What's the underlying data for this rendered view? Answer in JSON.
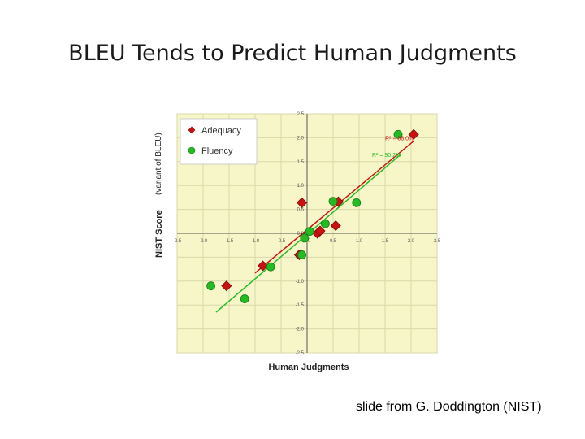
{
  "slide_title": "BLEU Tends to Predict Human Judgments",
  "credit": "slide from G. Doddington (NIST)",
  "chart_data": {
    "type": "scatter",
    "xlabel": "Human Judgments",
    "ylabel": "NIST Score",
    "ylabel_note": "(variant of BLEU)",
    "xlim": [
      -2.5,
      2.5
    ],
    "ylim": [
      -2.5,
      2.5
    ],
    "x_ticks": [
      "-2.5",
      "-2.0",
      "-1.5",
      "-1.0",
      "-0.5",
      "0.0",
      "0.5",
      "1.0",
      "1.5",
      "2.0",
      "2.5"
    ],
    "y_ticks": [
      "2.5",
      "2.0",
      "1.5",
      "1.0",
      "0.5",
      "0.0",
      "-0.5",
      "-1.0",
      "-1.5",
      "-2.0",
      "-2.5"
    ],
    "x_tick_values": [
      -2.5,
      -2.0,
      -1.5,
      -1.0,
      -0.5,
      0.0,
      0.5,
      1.0,
      1.5,
      2.0,
      2.5
    ],
    "y_tick_values": [
      2.5,
      2.0,
      1.5,
      1.0,
      0.5,
      0.0,
      -0.5,
      -1.0,
      -1.5,
      -2.0,
      -2.5
    ],
    "legend_position": "top-left",
    "grid": true,
    "background_color": "#f7f6c8",
    "series": [
      {
        "name": "Adequacy",
        "marker": "diamond",
        "color": "#cc1111",
        "r2_label": "R² = 88.0%",
        "points": [
          {
            "x": 2.05,
            "y": 2.07
          },
          {
            "x": 0.6,
            "y": 0.66
          },
          {
            "x": 0.55,
            "y": 0.16
          },
          {
            "x": -0.1,
            "y": 0.64
          },
          {
            "x": 0.2,
            "y": 0.0
          },
          {
            "x": 0.25,
            "y": 0.05
          },
          {
            "x": -0.15,
            "y": -0.45
          },
          {
            "x": -0.85,
            "y": -0.68
          },
          {
            "x": -1.55,
            "y": -1.1
          }
        ],
        "trend": {
          "x": [
            -1.0,
            2.05
          ],
          "y": [
            -0.83,
            1.93
          ]
        }
      },
      {
        "name": "Fluency",
        "marker": "circle",
        "color": "#22bb22",
        "r2_label": "R² = 90.2%",
        "points": [
          {
            "x": 1.75,
            "y": 2.07
          },
          {
            "x": 0.95,
            "y": 0.64
          },
          {
            "x": 0.5,
            "y": 0.67
          },
          {
            "x": 0.35,
            "y": 0.2
          },
          {
            "x": 0.05,
            "y": 0.04
          },
          {
            "x": -0.05,
            "y": -0.1
          },
          {
            "x": -0.1,
            "y": -0.45
          },
          {
            "x": -0.7,
            "y": -0.7
          },
          {
            "x": -1.2,
            "y": -1.37
          },
          {
            "x": -1.85,
            "y": -1.1
          }
        ],
        "trend": {
          "x": [
            -1.75,
            1.8
          ],
          "y": [
            -1.65,
            1.65
          ]
        }
      }
    ]
  }
}
